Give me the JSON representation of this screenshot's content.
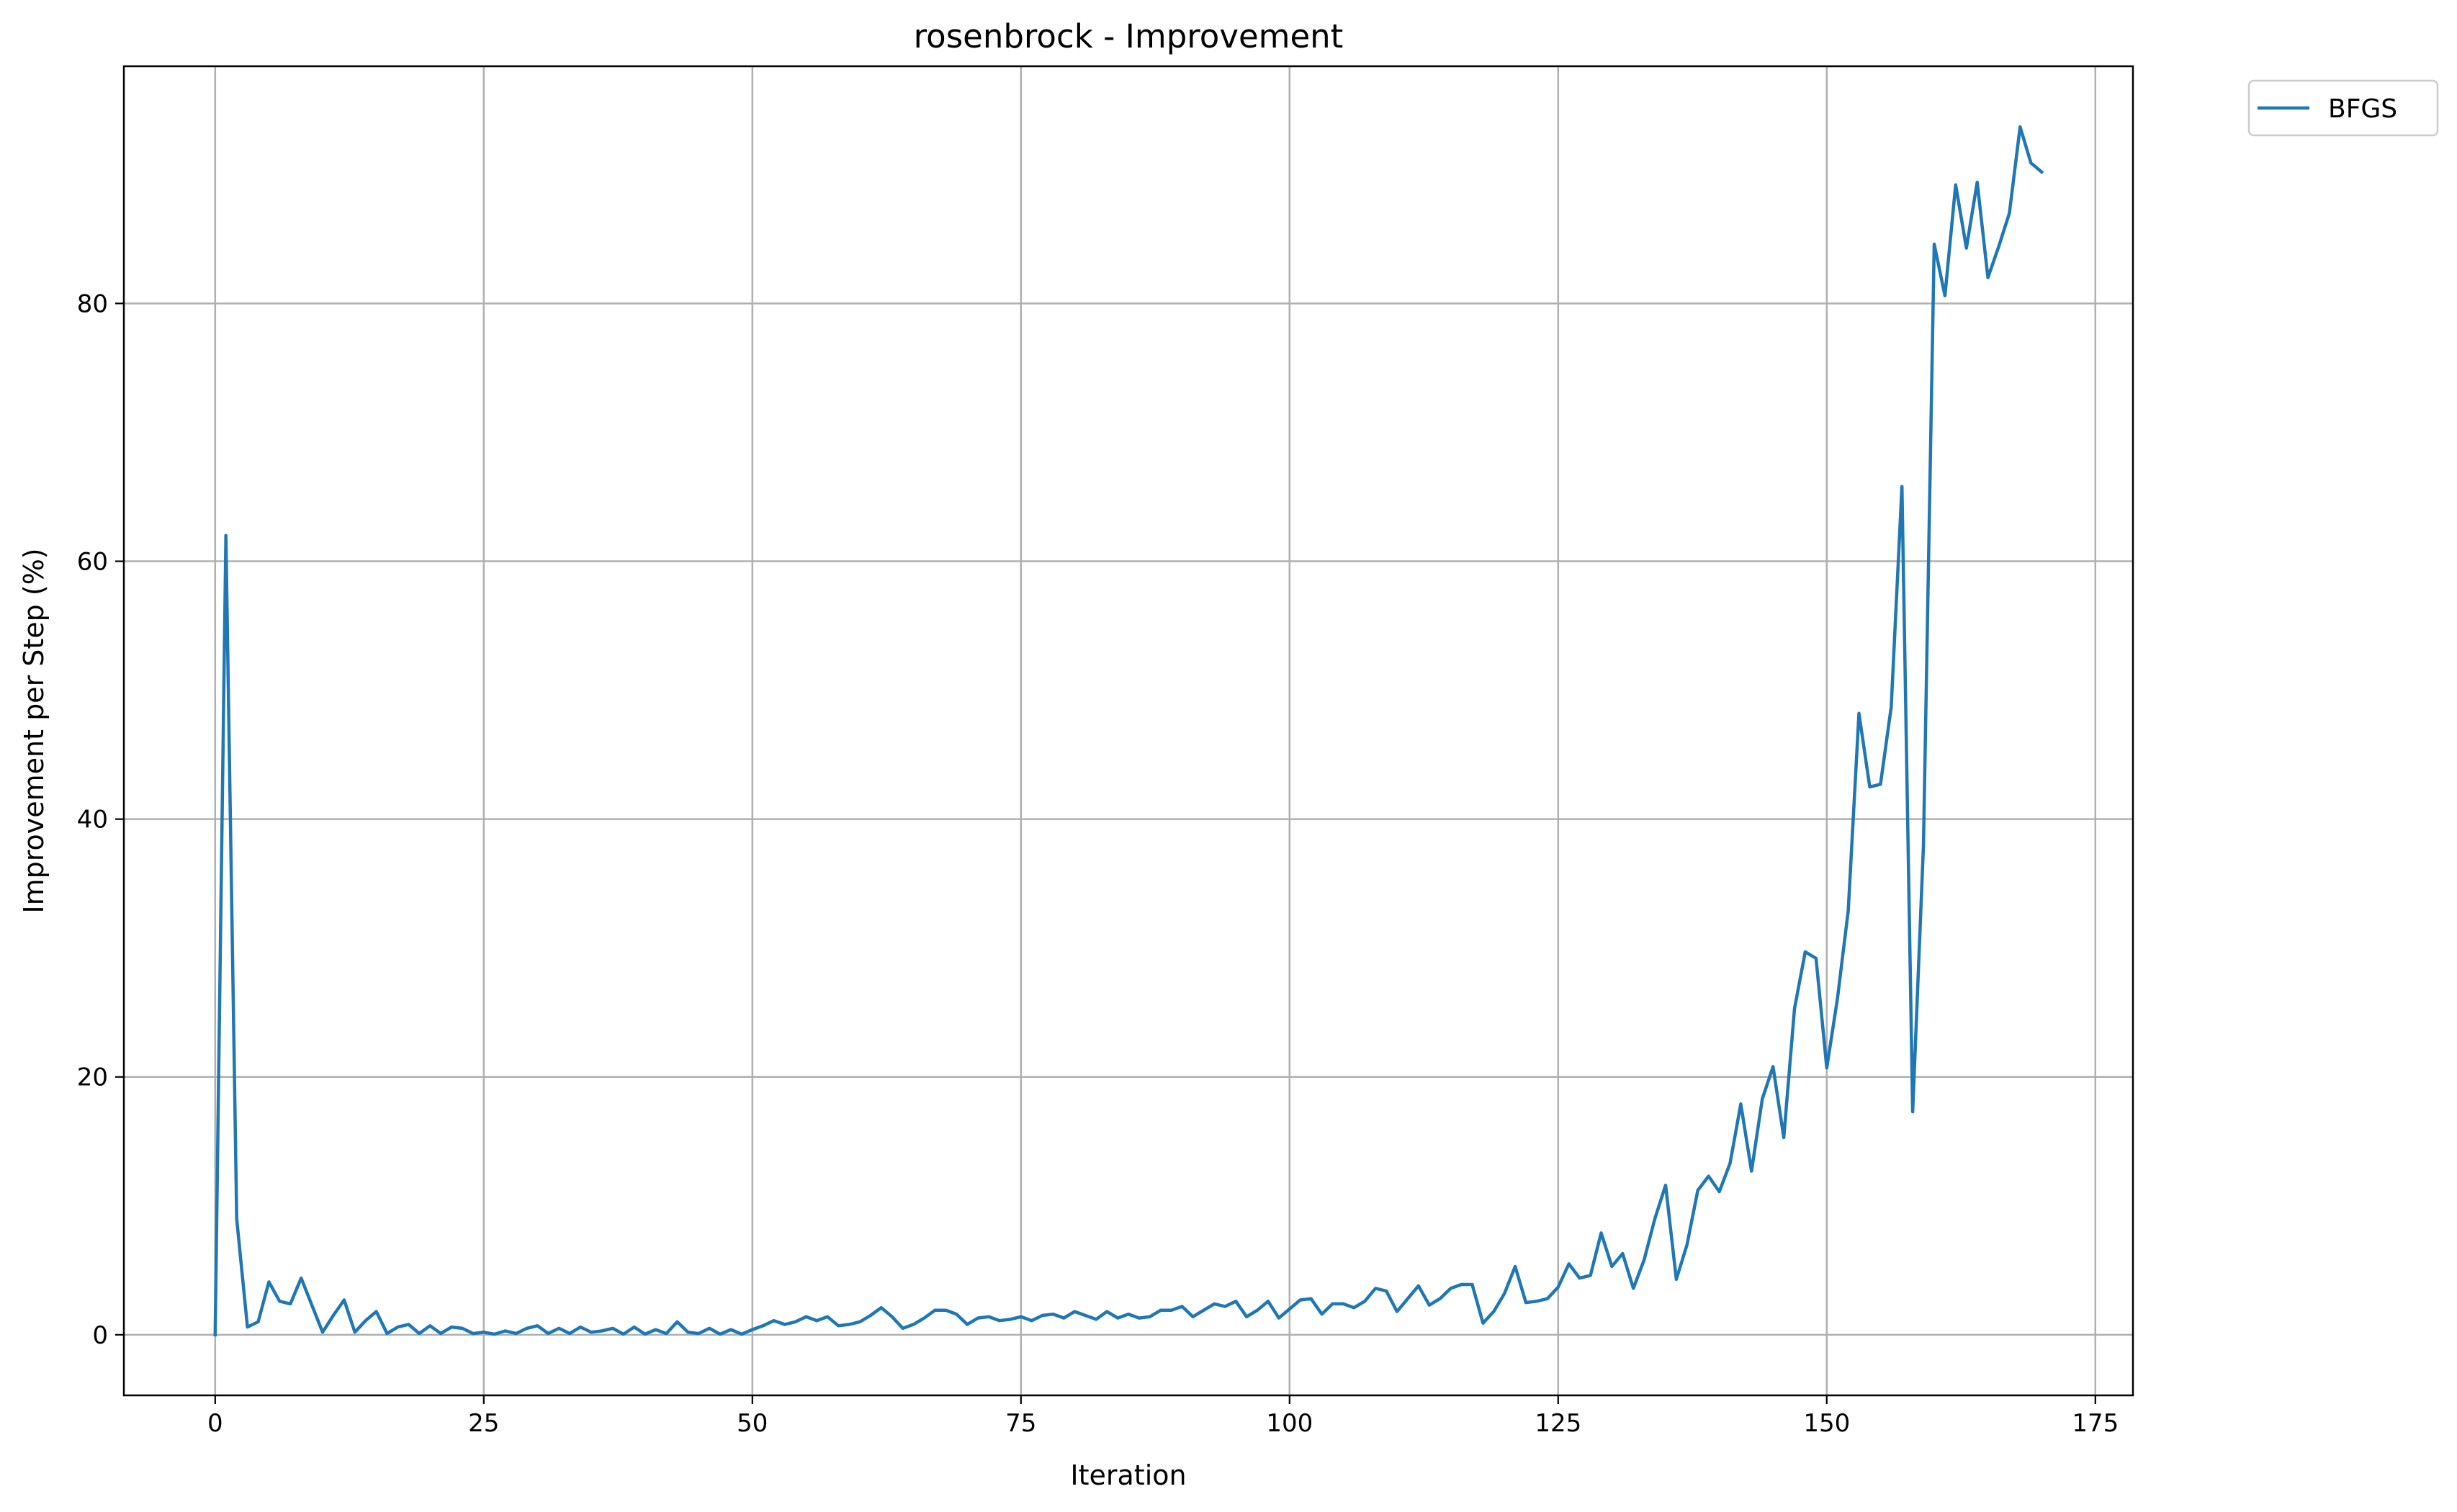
{
  "chart_data": {
    "type": "line",
    "title": "rosenbrock - Improvement",
    "xlabel": "Iteration",
    "ylabel": "Improvement per Step (%)",
    "xlim": [
      -8.5,
      178.5
    ],
    "ylim": [
      -4.7,
      98.4
    ],
    "xticks": [
      0,
      25,
      50,
      75,
      100,
      125,
      150,
      175
    ],
    "yticks": [
      0,
      20,
      40,
      60,
      80
    ],
    "grid": true,
    "legend_position": "outside-top-right",
    "colors": {
      "series": "#1f77b4",
      "grid": "#b0b0b0",
      "axis": "#000000"
    },
    "series": [
      {
        "name": "BFGS",
        "x": [
          0,
          1,
          2,
          3,
          4,
          5,
          6,
          7,
          8,
          9,
          10,
          11,
          12,
          13,
          14,
          15,
          16,
          17,
          18,
          19,
          20,
          21,
          22,
          23,
          24,
          25,
          26,
          27,
          28,
          29,
          30,
          31,
          32,
          33,
          34,
          35,
          36,
          37,
          38,
          39,
          40,
          41,
          42,
          43,
          44,
          45,
          46,
          47,
          48,
          49,
          50,
          51,
          52,
          53,
          54,
          55,
          56,
          57,
          58,
          59,
          60,
          61,
          62,
          63,
          64,
          65,
          66,
          67,
          68,
          69,
          70,
          71,
          72,
          73,
          74,
          75,
          76,
          77,
          78,
          79,
          80,
          81,
          82,
          83,
          84,
          85,
          86,
          87,
          88,
          89,
          90,
          91,
          92,
          93,
          94,
          95,
          96,
          97,
          98,
          99,
          100,
          101,
          102,
          103,
          104,
          105,
          106,
          107,
          108,
          109,
          110,
          111,
          112,
          113,
          114,
          115,
          116,
          117,
          118,
          119,
          120,
          121,
          122,
          123,
          124,
          125,
          126,
          127,
          128,
          129,
          130,
          131,
          132,
          133,
          134,
          135,
          136,
          137,
          138,
          139,
          140,
          141,
          142,
          143,
          144,
          145,
          146,
          147,
          148,
          149,
          150,
          151,
          152,
          153,
          154,
          155,
          156,
          157,
          158,
          159,
          160,
          161,
          162,
          163,
          164,
          165,
          166,
          167,
          168,
          169,
          170
        ],
        "values": [
          0,
          62.0,
          9.0,
          0.6,
          1.0,
          4.1,
          2.6,
          2.4,
          4.4,
          2.3,
          0.2,
          1.5,
          2.7,
          0.2,
          1.1,
          1.8,
          0.1,
          0.6,
          0.8,
          0.1,
          0.7,
          0.1,
          0.6,
          0.5,
          0.1,
          0.2,
          0.05,
          0.3,
          0.1,
          0.5,
          0.7,
          0.1,
          0.5,
          0.1,
          0.6,
          0.2,
          0.3,
          0.5,
          0.05,
          0.6,
          0.05,
          0.4,
          0.1,
          1.0,
          0.2,
          0.1,
          0.5,
          0.05,
          0.4,
          0.05,
          0.4,
          0.7,
          1.1,
          0.8,
          1.0,
          1.4,
          1.1,
          1.4,
          0.7,
          0.8,
          1.0,
          1.5,
          2.1,
          1.4,
          0.5,
          0.8,
          1.3,
          1.9,
          1.9,
          1.6,
          0.8,
          1.3,
          1.4,
          1.1,
          1.2,
          1.4,
          1.1,
          1.5,
          1.6,
          1.3,
          1.8,
          1.5,
          1.2,
          1.8,
          1.3,
          1.6,
          1.3,
          1.4,
          1.9,
          1.9,
          2.2,
          1.4,
          1.9,
          2.4,
          2.2,
          2.6,
          1.4,
          1.9,
          2.6,
          1.3,
          2.0,
          2.7,
          2.8,
          1.6,
          2.4,
          2.4,
          2.1,
          2.6,
          3.6,
          3.4,
          1.8,
          2.8,
          3.8,
          2.3,
          2.8,
          3.6,
          3.9,
          3.9,
          0.9,
          1.8,
          3.2,
          5.3,
          2.5,
          2.6,
          2.8,
          3.7,
          5.5,
          4.4,
          4.6,
          7.9,
          5.3,
          6.3,
          3.6,
          5.8,
          9.0,
          11.6,
          4.3,
          7.0,
          11.2,
          12.3,
          11.1,
          13.3,
          17.9,
          12.7,
          18.3,
          20.8,
          15.3,
          25.3,
          29.7,
          29.2,
          20.7,
          26.1,
          32.9,
          48.2,
          42.5,
          42.7,
          48.7,
          65.8,
          17.3,
          38.0,
          84.6,
          80.6,
          89.2,
          84.3,
          89.4,
          82.0,
          84.4,
          87.0,
          93.7,
          90.9,
          90.2
        ]
      }
    ]
  }
}
